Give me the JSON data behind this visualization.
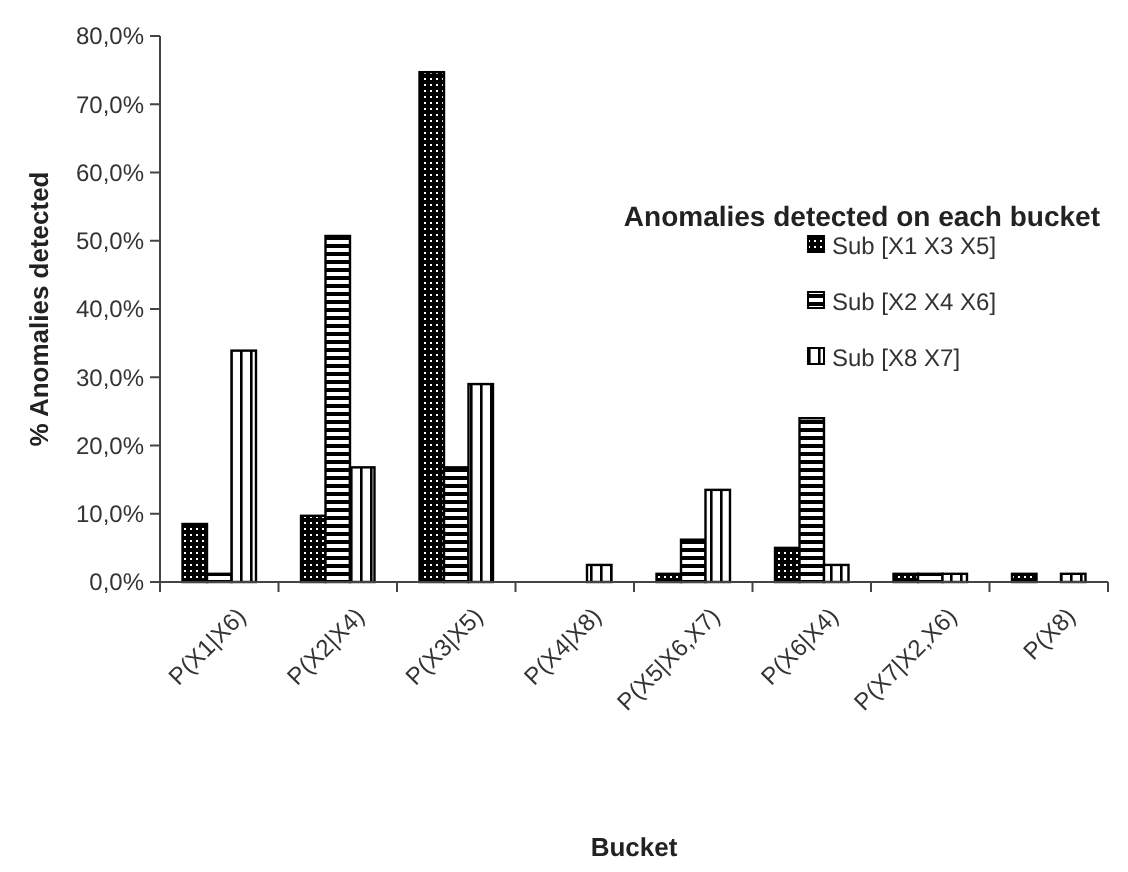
{
  "chart_data": {
    "type": "bar",
    "title": "Anomalies detected on each bucket",
    "xlabel": "Bucket",
    "ylabel": "% Anomalies detected",
    "categories": [
      "P(X1|X6)",
      "P(X2|X4)",
      "P(X3|X5)",
      "P(X4|X8)",
      "P(X5|X6,X7)",
      "P(X6|X4)",
      "P(X7|X2,X6)",
      "P(X8)"
    ],
    "series": [
      {
        "name": "Sub [X1 X3 X5]",
        "color": "#000000",
        "values": [
          8.5,
          9.7,
          74.7,
          0,
          1.2,
          5,
          1.2,
          1.2
        ]
      },
      {
        "name": "Sub [X2 X4 X6]",
        "color": "#000000",
        "values": [
          1.2,
          50.7,
          16.8,
          0,
          6.2,
          24,
          1.2,
          0
        ]
      },
      {
        "name": "Sub [X8 X7]",
        "color": "#000000",
        "values": [
          33.9,
          16.8,
          29,
          2.5,
          13.5,
          2.5,
          1.2,
          1.2
        ]
      }
    ],
    "ylim": [
      0,
      80
    ],
    "yticks": [
      {
        "value": 0,
        "label": "0,0%"
      },
      {
        "value": 10,
        "label": "10,0%"
      },
      {
        "value": 20,
        "label": "20,0%"
      },
      {
        "value": 30,
        "label": "30,0%"
      },
      {
        "value": 40,
        "label": "40,0%"
      },
      {
        "value": 50,
        "label": "50,0%"
      },
      {
        "value": 60,
        "label": "60,0%"
      },
      {
        "value": 70,
        "label": "70,0%"
      },
      {
        "value": 80,
        "label": "80,0%"
      }
    ],
    "grid": false,
    "legend": "right"
  }
}
